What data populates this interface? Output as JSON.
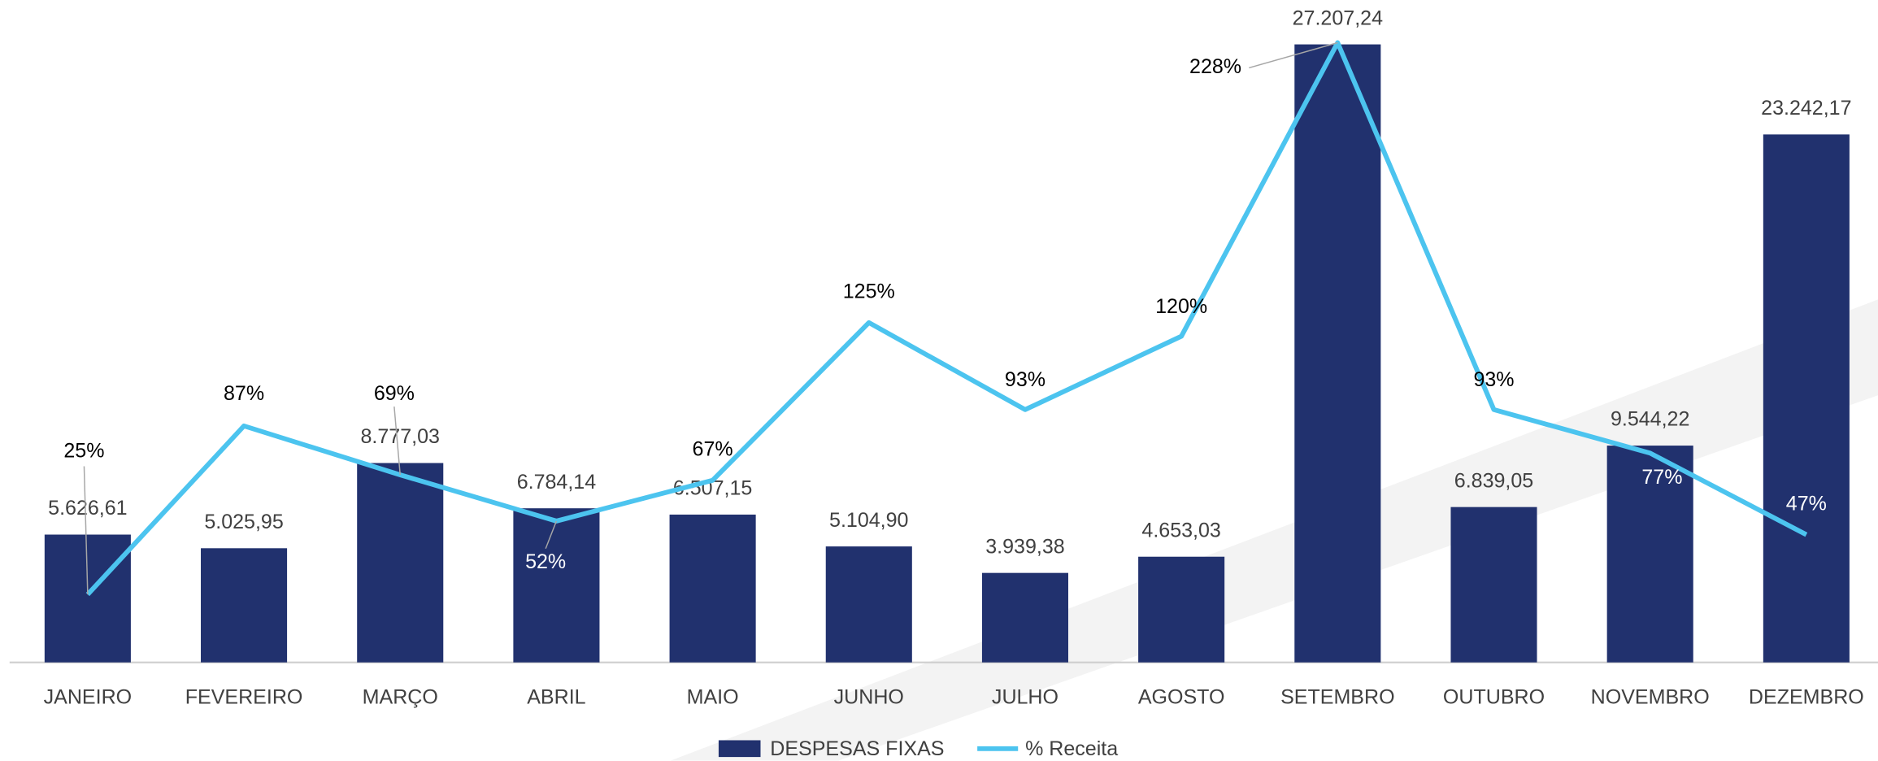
{
  "chart_data": {
    "type": "bar",
    "categories": [
      "JANEIRO",
      "FEVEREIRO",
      "MARÇO",
      "ABRIL",
      "MAIO",
      "JUNHO",
      "JULHO",
      "AGOSTO",
      "SETEMBRO",
      "OUTUBRO",
      "NOVEMBRO",
      "DEZEMBRO"
    ],
    "series": [
      {
        "name": "DESPESAS FIXAS",
        "type": "bar",
        "color": "#21316e",
        "values": [
          5626.61,
          5025.95,
          8777.03,
          6784.14,
          6507.15,
          5104.9,
          3939.38,
          4653.03,
          27207.24,
          6839.05,
          9544.22,
          23242.17
        ],
        "value_labels": [
          "5.626,61",
          "5.025,95",
          "8.777,03",
          "6.784,14",
          "6.507,15",
          "5.104,90",
          "3.939,38",
          "4.653,03",
          "27.207,24",
          "6.839,05",
          "9.544,22",
          "23.242,17"
        ]
      },
      {
        "name": "% Receita",
        "type": "line",
        "axis": "y2",
        "color": "#4cc4ef",
        "values": [
          25,
          87,
          69,
          52,
          67,
          125,
          93,
          120,
          228,
          93,
          77,
          47
        ],
        "value_labels": [
          "25%",
          "87%",
          "69%",
          "52%",
          "67%",
          "125%",
          "93%",
          "120%",
          "228%",
          "93%",
          "77%",
          "47%"
        ]
      }
    ],
    "ylim": [
      0,
      28000
    ],
    "y2lim": [
      0,
      234
    ],
    "legend": "bottom"
  }
}
